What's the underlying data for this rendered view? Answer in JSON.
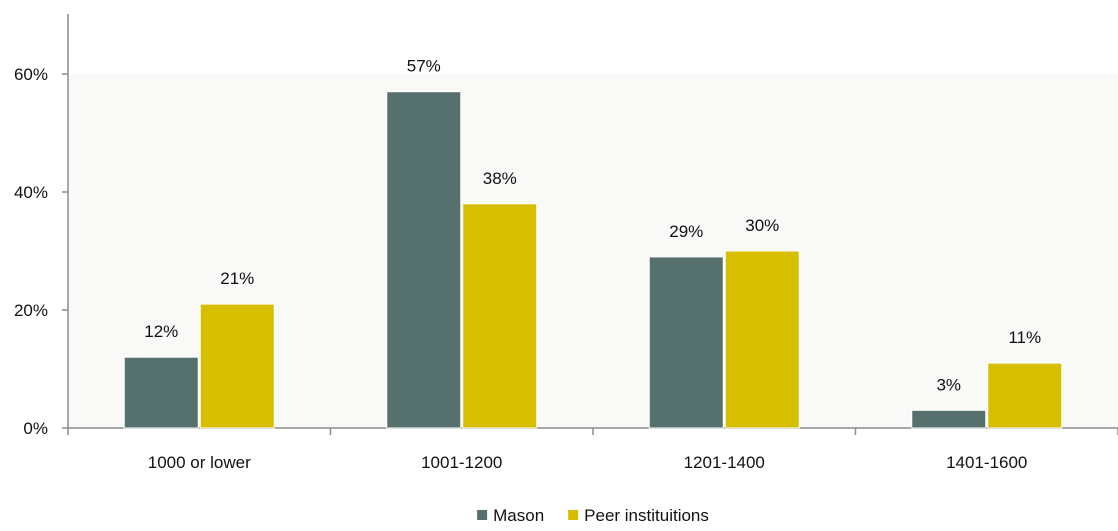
{
  "chart_data": {
    "type": "bar",
    "categories": [
      "1000 or lower",
      "1001-1200",
      "1201-1400",
      "1401-1600"
    ],
    "series": [
      {
        "name": "Mason",
        "values": [
          12,
          57,
          29,
          3
        ],
        "labels": [
          "12%",
          "57%",
          "29%",
          "3%"
        ],
        "color": "#56706d"
      },
      {
        "name": "Peer instituitions",
        "values": [
          21,
          38,
          30,
          11
        ],
        "labels": [
          "21%",
          "38%",
          "30%",
          "11%"
        ],
        "color": "#d6bf00"
      }
    ],
    "y_ticks": [
      {
        "value": 0,
        "label": "0%"
      },
      {
        "value": 20,
        "label": "20%"
      },
      {
        "value": 40,
        "label": "40%"
      },
      {
        "value": 60,
        "label": "60%"
      }
    ],
    "ylim": [
      0,
      70
    ],
    "grid": false,
    "legend_position": "bottom-center",
    "title": "",
    "xlabel": "",
    "ylabel": ""
  }
}
